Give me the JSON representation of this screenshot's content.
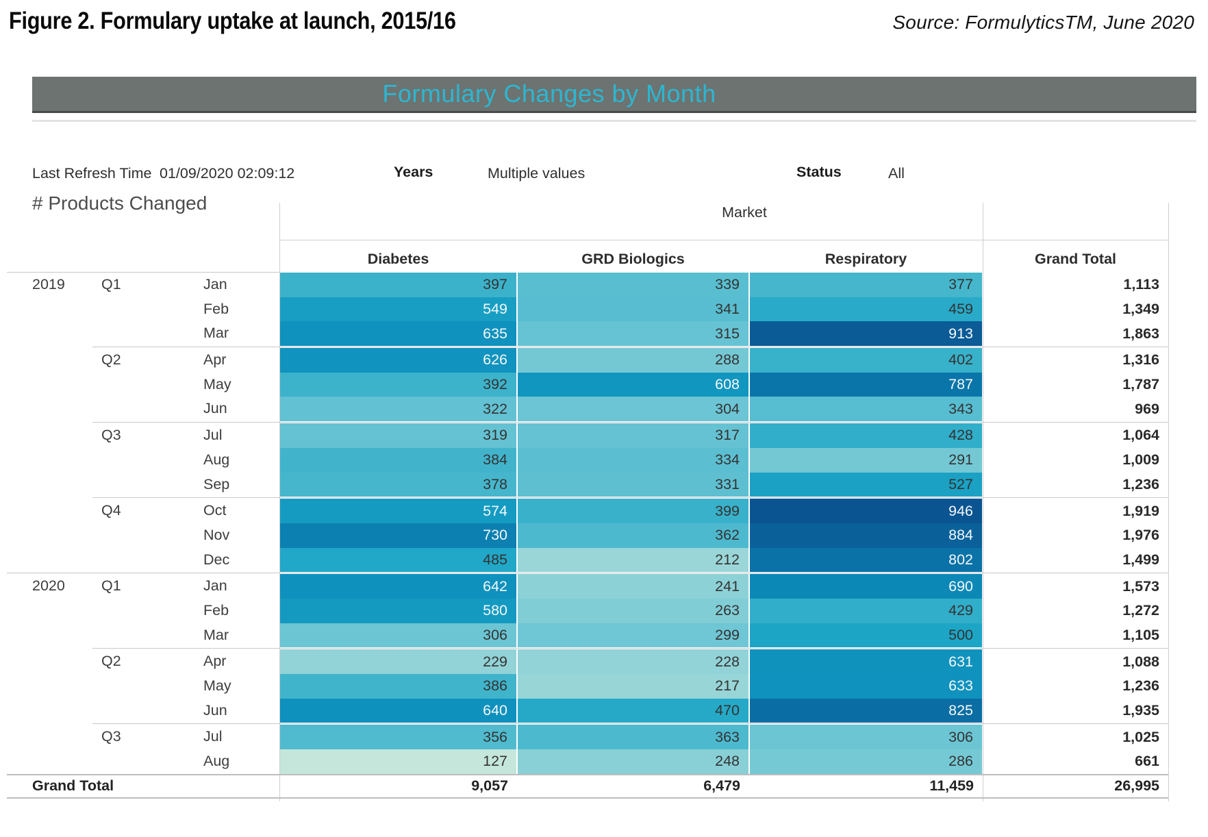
{
  "figure": {
    "title": "Figure 2. Formulary uptake at launch, 2015/16",
    "source": "Source: FormulyticsTM, June 2020"
  },
  "dashboard": {
    "title": "Formulary Changes by Month",
    "last_refresh": {
      "label": "Last Refresh Time",
      "value": "01/09/2020 02:09:12"
    },
    "filters": [
      {
        "label": "Years",
        "value": "Multiple values"
      },
      {
        "label": "Status",
        "value": "All"
      }
    ]
  },
  "colors": {
    "title_bar_bg": "#6d7370",
    "title_bar_text": "#2db6d2",
    "divider": "#cfcfcf",
    "cell_text_dark": "#333333",
    "cell_text_light": "#f4f8fa"
  },
  "chart_data": {
    "type": "heatmap",
    "title": "Formulary Changes by Month",
    "measure_label": "# Products Changed",
    "column_group_label": "Market",
    "columns": [
      "Diabetes",
      "GRD Biologics",
      "Respiratory"
    ],
    "grand_total_label": "Grand Total",
    "rows": [
      {
        "year": "2019",
        "quarter": "Q1",
        "month": "Jan",
        "values": [
          397,
          339,
          377
        ],
        "total": 1113
      },
      {
        "month": "Feb",
        "values": [
          549,
          341,
          459
        ],
        "total": 1349
      },
      {
        "month": "Mar",
        "values": [
          635,
          315,
          913
        ],
        "total": 1863
      },
      {
        "quarter": "Q2",
        "month": "Apr",
        "values": [
          626,
          288,
          402
        ],
        "total": 1316
      },
      {
        "month": "May",
        "values": [
          392,
          608,
          787
        ],
        "total": 1787
      },
      {
        "month": "Jun",
        "values": [
          322,
          304,
          343
        ],
        "total": 969
      },
      {
        "quarter": "Q3",
        "month": "Jul",
        "values": [
          319,
          317,
          428
        ],
        "total": 1064
      },
      {
        "month": "Aug",
        "values": [
          384,
          334,
          291
        ],
        "total": 1009
      },
      {
        "month": "Sep",
        "values": [
          378,
          331,
          527
        ],
        "total": 1236
      },
      {
        "quarter": "Q4",
        "month": "Oct",
        "values": [
          574,
          399,
          946
        ],
        "total": 1919
      },
      {
        "month": "Nov",
        "values": [
          730,
          362,
          884
        ],
        "total": 1976
      },
      {
        "month": "Dec",
        "values": [
          485,
          212,
          802
        ],
        "total": 1499
      },
      {
        "year": "2020",
        "quarter": "Q1",
        "month": "Jan",
        "values": [
          642,
          241,
          690
        ],
        "total": 1573
      },
      {
        "month": "Feb",
        "values": [
          580,
          263,
          429
        ],
        "total": 1272
      },
      {
        "month": "Mar",
        "values": [
          306,
          299,
          500
        ],
        "total": 1105
      },
      {
        "quarter": "Q2",
        "month": "Apr",
        "values": [
          229,
          228,
          631
        ],
        "total": 1088
      },
      {
        "month": "May",
        "values": [
          386,
          217,
          633
        ],
        "total": 1236
      },
      {
        "month": "Jun",
        "values": [
          640,
          470,
          825
        ],
        "total": 1935
      },
      {
        "quarter": "Q3",
        "month": "Jul",
        "values": [
          356,
          363,
          306
        ],
        "total": 1025
      },
      {
        "month": "Aug",
        "values": [
          127,
          248,
          286
        ],
        "total": 661
      }
    ],
    "column_totals": [
      9057,
      6479,
      11459
    ],
    "grand_total": 26995,
    "color_scale": {
      "stops": [
        [
          127,
          "#c5e6db"
        ],
        [
          300,
          "#6ec6d4"
        ],
        [
          400,
          "#39b1ca"
        ],
        [
          500,
          "#1da5c6"
        ],
        [
          650,
          "#0d90bc"
        ],
        [
          800,
          "#0a72a7"
        ],
        [
          950,
          "#0a5390"
        ]
      ],
      "white_text_min": 540
    },
    "legend": false
  }
}
